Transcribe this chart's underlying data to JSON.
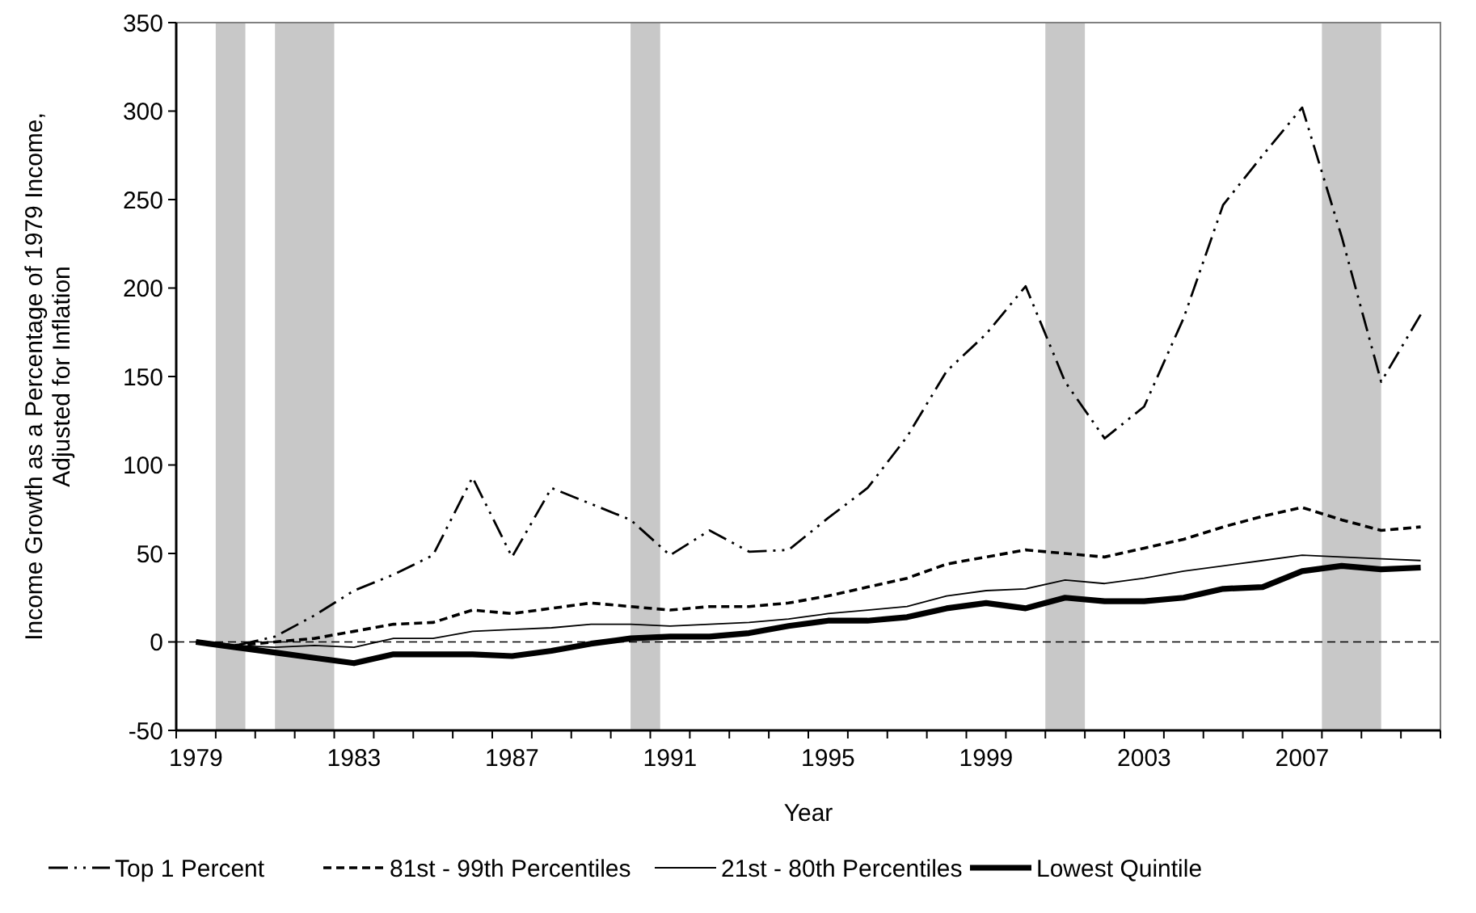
{
  "chart_data": {
    "type": "line",
    "xlabel": "Year",
    "ylabel": "Income Growth as a Percentage of 1979 Income,\nAdjusted for Inflation",
    "x": [
      1979,
      1980,
      1981,
      1982,
      1983,
      1984,
      1985,
      1986,
      1987,
      1988,
      1989,
      1990,
      1991,
      1992,
      1993,
      1994,
      1995,
      1996,
      1997,
      1998,
      1999,
      2000,
      2001,
      2002,
      2003,
      2004,
      2005,
      2006,
      2007,
      2008,
      2009,
      2010
    ],
    "xlim": [
      1978.5,
      2010.5
    ],
    "xticks": [
      1979,
      1983,
      1987,
      1991,
      1995,
      1999,
      2003,
      2007,
      {
        "value": 1978.5,
        "label": null
      },
      {
        "value": 1979.5,
        "label": null
      },
      {
        "value": 1980.5,
        "label": null
      },
      {
        "value": 1981.5,
        "label": null
      },
      {
        "value": 1982.5,
        "label": null
      },
      {
        "value": 1983.5,
        "label": null
      },
      {
        "value": 1984.5,
        "label": null
      },
      {
        "value": 1985.5,
        "label": null
      },
      {
        "value": 1986.5,
        "label": null
      },
      {
        "value": 1987.5,
        "label": null
      },
      {
        "value": 1988.5,
        "label": null
      },
      {
        "value": 1989.5,
        "label": null
      },
      {
        "value": 1990.5,
        "label": null
      },
      {
        "value": 1991.5,
        "label": null
      },
      {
        "value": 1992.5,
        "label": null
      },
      {
        "value": 1993.5,
        "label": null
      },
      {
        "value": 1994.5,
        "label": null
      },
      {
        "value": 1995.5,
        "label": null
      },
      {
        "value": 1996.5,
        "label": null
      },
      {
        "value": 1997.5,
        "label": null
      },
      {
        "value": 1998.5,
        "label": null
      },
      {
        "value": 1999.5,
        "label": null
      },
      {
        "value": 2000.5,
        "label": null
      },
      {
        "value": 2001.5,
        "label": null
      },
      {
        "value": 2002.5,
        "label": null
      },
      {
        "value": 2003.5,
        "label": null
      },
      {
        "value": 2004.5,
        "label": null
      },
      {
        "value": 2005.5,
        "label": null
      },
      {
        "value": 2006.5,
        "label": null
      },
      {
        "value": 2007.5,
        "label": null
      },
      {
        "value": 2008.5,
        "label": null
      },
      {
        "value": 2009.5,
        "label": null
      },
      {
        "value": 2010.5,
        "label": null
      }
    ],
    "ylim": [
      -50,
      350
    ],
    "yticks": [
      -50,
      0,
      50,
      100,
      150,
      200,
      250,
      300,
      350
    ],
    "grid": false,
    "legend": "bottom",
    "series": [
      {
        "name": "Top 1 Percent",
        "color": "#000000",
        "line_style": "dotted",
        "values": [
          0,
          -2,
          3,
          15,
          29,
          38,
          49,
          93,
          48,
          87,
          78,
          69,
          49,
          63,
          51,
          52,
          70,
          87,
          116,
          153,
          174,
          201,
          147,
          115,
          133,
          183,
          247,
          275,
          302,
          229,
          147,
          185
        ]
      },
      {
        "name": "81st - 99th Percentiles",
        "color": "#000000",
        "line_style": "dashed",
        "values": [
          0,
          -2,
          0,
          2,
          6,
          10,
          11,
          18,
          16,
          19,
          22,
          20,
          18,
          20,
          20,
          22,
          26,
          31,
          36,
          44,
          48,
          52,
          50,
          48,
          53,
          58,
          65,
          71,
          76,
          69,
          63,
          65
        ]
      },
      {
        "name": "21st - 80th Percentiles",
        "color": "#000000",
        "line_style": "solid",
        "values": [
          0,
          -2,
          -3,
          -2,
          -3,
          2,
          2,
          6,
          7,
          8,
          10,
          10,
          9,
          10,
          11,
          13,
          16,
          18,
          20,
          26,
          29,
          30,
          35,
          33,
          36,
          40,
          43,
          46,
          49,
          48,
          47,
          46
        ]
      },
      {
        "name": "Lowest Quintile",
        "color": "#000000",
        "line_style": "solid",
        "values": [
          0,
          -3,
          -6,
          -9,
          -12,
          -7,
          -7,
          -7,
          -8,
          -5,
          -1,
          2,
          3,
          3,
          5,
          9,
          12,
          12,
          14,
          19,
          22,
          19,
          25,
          23,
          23,
          25,
          30,
          31,
          40,
          43,
          41,
          42
        ]
      }
    ],
    "ref_lines": [
      {
        "axis": "y",
        "value": 0,
        "color": "#000000",
        "line_style": "dashed"
      }
    ],
    "bands": [
      {
        "axis": "x",
        "from": 1979.5,
        "to": 1980.25,
        "color": "#c8c8c8"
      },
      {
        "axis": "x",
        "from": 1981,
        "to": 1982.5,
        "color": "#c8c8c8"
      },
      {
        "axis": "x",
        "from": 1990,
        "to": 1990.75,
        "color": "#c8c8c8"
      },
      {
        "axis": "x",
        "from": 2000.5,
        "to": 2001.5,
        "color": "#c8c8c8"
      },
      {
        "axis": "x",
        "from": 2007.5,
        "to": 2009,
        "color": "#c8c8c8"
      }
    ]
  }
}
